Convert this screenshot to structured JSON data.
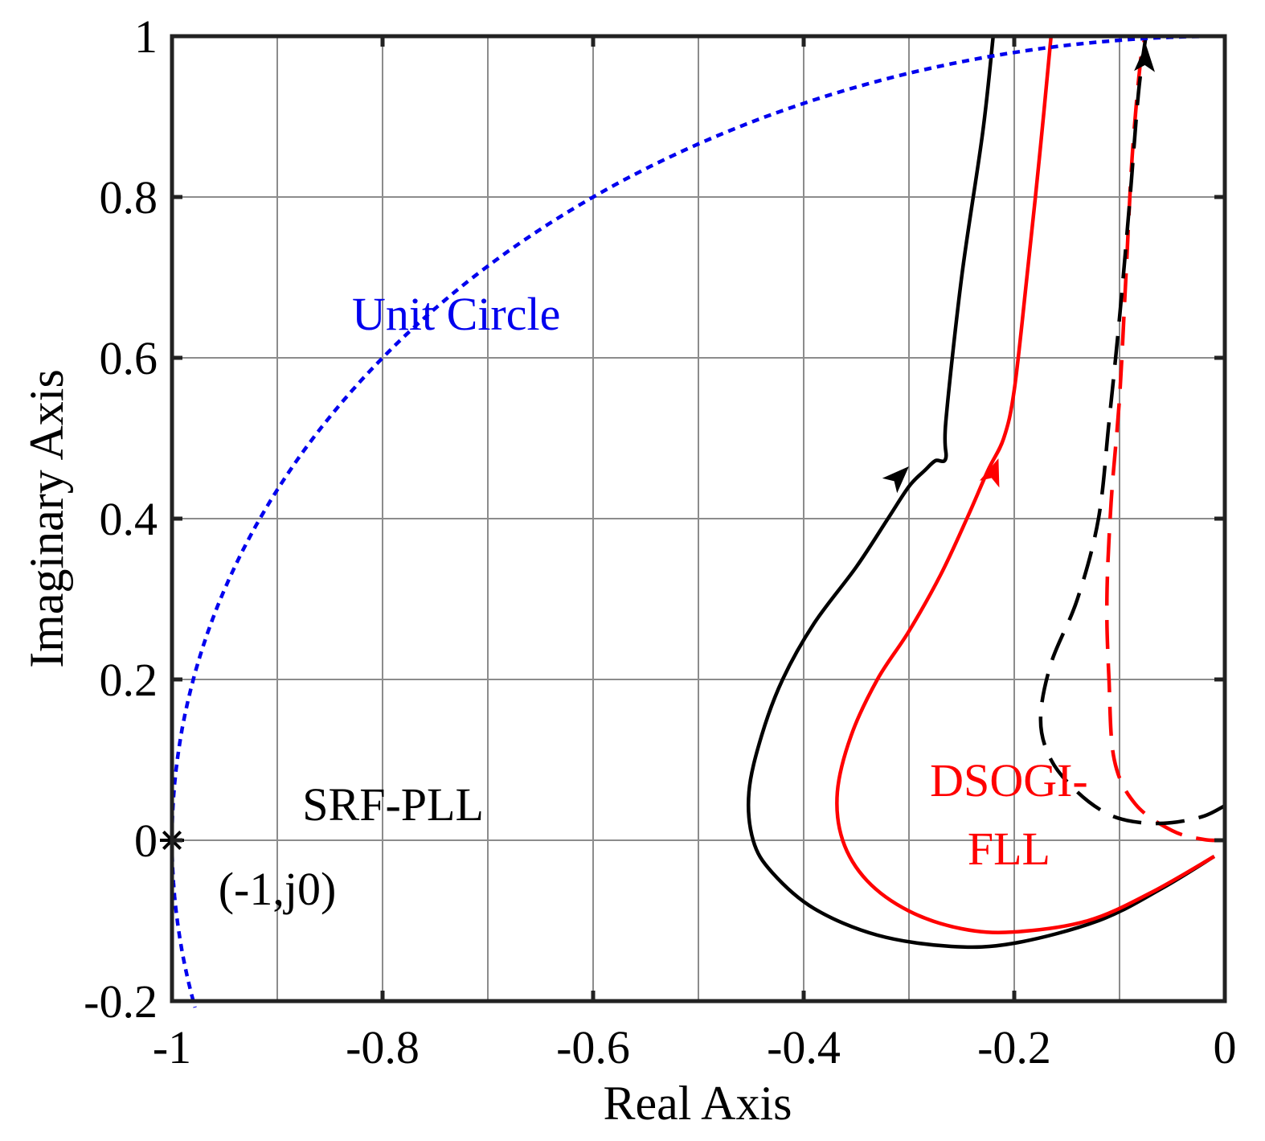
{
  "chart_data": {
    "type": "line",
    "title": "",
    "xlabel": "Real Axis",
    "ylabel": "Imaginary Axis",
    "xlim": [
      -1.0,
      0.0
    ],
    "ylim": [
      -0.2,
      1.0
    ],
    "x_ticks": [
      -1.0,
      -0.8,
      -0.6,
      -0.4,
      -0.2,
      0.0
    ],
    "x_tick_labels": [
      "-1",
      "-0.8",
      "-0.6",
      "-0.4",
      "-0.2",
      "0"
    ],
    "y_ticks": [
      -0.2,
      0.0,
      0.2,
      0.4,
      0.6,
      0.8,
      1.0
    ],
    "y_tick_labels": [
      "-0.2",
      "0",
      "0.2",
      "0.4",
      "0.6",
      "0.8",
      "1"
    ],
    "grid": true,
    "colors": {
      "black": "#000000",
      "red": "#ff0000",
      "blue": "#0000ee",
      "grid": "#8c8c8c"
    },
    "series": [
      {
        "name": "SRF-PLL",
        "color": "#000000",
        "style": "solid",
        "points": [
          [
            -0.01,
            -0.02
          ],
          [
            -0.06,
            -0.06
          ],
          [
            -0.12,
            -0.1
          ],
          [
            -0.2,
            -0.128
          ],
          [
            -0.26,
            -0.132
          ],
          [
            -0.33,
            -0.118
          ],
          [
            -0.39,
            -0.085
          ],
          [
            -0.43,
            -0.04
          ],
          [
            -0.448,
            0.0
          ],
          [
            -0.452,
            0.06
          ],
          [
            -0.44,
            0.13
          ],
          [
            -0.42,
            0.2
          ],
          [
            -0.39,
            0.27
          ],
          [
            -0.35,
            0.34
          ],
          [
            -0.32,
            0.4
          ],
          [
            -0.3,
            0.44
          ],
          [
            -0.285,
            0.46
          ],
          [
            -0.275,
            0.472
          ],
          [
            -0.265,
            0.475
          ],
          [
            -0.265,
            0.52
          ],
          [
            -0.25,
            0.7
          ],
          [
            -0.23,
            0.88
          ],
          [
            -0.22,
            1.0
          ]
        ]
      },
      {
        "name": "DSOGI-FLL",
        "color": "#ff0000",
        "style": "solid",
        "points": [
          [
            -0.01,
            -0.02
          ],
          [
            -0.07,
            -0.065
          ],
          [
            -0.13,
            -0.1
          ],
          [
            -0.2,
            -0.114
          ],
          [
            -0.25,
            -0.11
          ],
          [
            -0.3,
            -0.088
          ],
          [
            -0.34,
            -0.05
          ],
          [
            -0.363,
            0.0
          ],
          [
            -0.368,
            0.06
          ],
          [
            -0.355,
            0.13
          ],
          [
            -0.33,
            0.2
          ],
          [
            -0.3,
            0.26
          ],
          [
            -0.27,
            0.33
          ],
          [
            -0.245,
            0.4
          ],
          [
            -0.225,
            0.46
          ],
          [
            -0.21,
            0.5
          ],
          [
            -0.2,
            0.56
          ],
          [
            -0.188,
            0.7
          ],
          [
            -0.176,
            0.85
          ],
          [
            -0.165,
            1.0
          ]
        ]
      },
      {
        "name": "DSOGI-FLL (dashed)",
        "color": "#ff0000",
        "style": "dashed",
        "points": [
          [
            0.0,
            0.0
          ],
          [
            -0.02,
            0.001
          ],
          [
            -0.05,
            0.012
          ],
          [
            -0.085,
            0.045
          ],
          [
            -0.105,
            0.1
          ],
          [
            -0.11,
            0.2
          ],
          [
            -0.112,
            0.3
          ],
          [
            -0.108,
            0.42
          ],
          [
            -0.1,
            0.55
          ],
          [
            -0.094,
            0.7
          ],
          [
            -0.088,
            0.85
          ],
          [
            -0.08,
            0.97
          ],
          [
            -0.075,
            1.0
          ]
        ]
      },
      {
        "name": "SRF-PLL (dashed)",
        "color": "#000000",
        "style": "dashed",
        "points": [
          [
            0.0,
            0.043
          ],
          [
            -0.02,
            0.03
          ],
          [
            -0.05,
            0.022
          ],
          [
            -0.08,
            0.022
          ],
          [
            -0.11,
            0.032
          ],
          [
            -0.14,
            0.06
          ],
          [
            -0.165,
            0.1
          ],
          [
            -0.175,
            0.15
          ],
          [
            -0.165,
            0.22
          ],
          [
            -0.14,
            0.3
          ],
          [
            -0.12,
            0.4
          ],
          [
            -0.11,
            0.52
          ],
          [
            -0.1,
            0.65
          ],
          [
            -0.09,
            0.8
          ],
          [
            -0.082,
            0.93
          ],
          [
            -0.075,
            1.0
          ]
        ]
      },
      {
        "name": "Unit Circle",
        "color": "#0000ee",
        "style": "dotted",
        "circle": {
          "center": [
            0,
            0
          ],
          "radius": 1,
          "theta_from_deg": 90,
          "theta_to_deg": 192
        }
      }
    ],
    "arrows": [
      {
        "series": "SRF-PLL",
        "at": [
          -0.3,
          0.465
        ],
        "dir": [
          1.0,
          1.0
        ],
        "color": "#000000"
      },
      {
        "series": "DSOGI-FLL",
        "at": [
          -0.215,
          0.475
        ],
        "dir": [
          0.35,
          1.0
        ],
        "color": "#ff0000"
      },
      {
        "series": "dashed",
        "at": [
          -0.075,
          0.99
        ],
        "dir": [
          0.05,
          1.0
        ],
        "color": "#000000"
      }
    ],
    "markers": [
      {
        "label": "(-1,j0)",
        "x": -1.0,
        "y": 0.0,
        "symbol": "asterisk",
        "color": "#000000"
      }
    ],
    "annotations": [
      {
        "text": "Unit Circle",
        "x": -0.73,
        "y": 0.655,
        "color": "#0000ee"
      },
      {
        "text": "SRF-PLL",
        "x": -0.79,
        "y": 0.045,
        "color": "#000000"
      },
      {
        "text": "DSOGI-",
        "x": -0.205,
        "y": 0.075,
        "color": "#ff0000"
      },
      {
        "text": "FLL",
        "x": -0.205,
        "y": -0.01,
        "color": "#ff0000"
      },
      {
        "text": "(-1,j0)",
        "x": -0.9,
        "y": -0.06,
        "color": "#000000"
      }
    ]
  }
}
